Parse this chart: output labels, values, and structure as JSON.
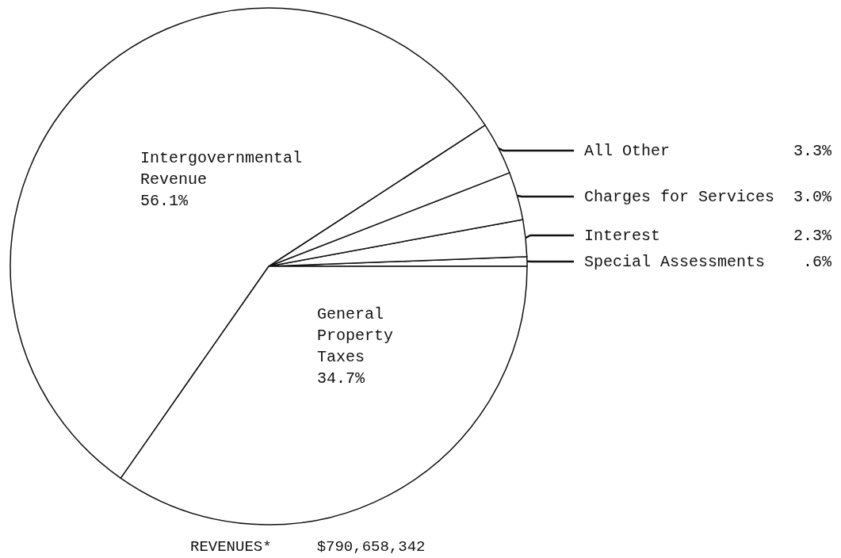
{
  "chart_data": {
    "type": "pie",
    "categories": [
      "Special Assessments",
      "Interest",
      "Charges for Services",
      "All Other",
      "Intergovernmental Revenue",
      "General Property Taxes"
    ],
    "values": [
      0.6,
      2.3,
      3.0,
      3.3,
      56.1,
      34.7
    ],
    "value_labels": [
      ".6%",
      "2.3%",
      "3.0%",
      "3.3%",
      "56.1%",
      "34.7%"
    ],
    "colors": [
      "#ffffff",
      "#ffffff",
      "#ffffff",
      "#ffffff",
      "#ffffff",
      "#ffffff"
    ],
    "annotations": [
      "REVENUES*     $790,658,342"
    ],
    "legend": false
  }
}
